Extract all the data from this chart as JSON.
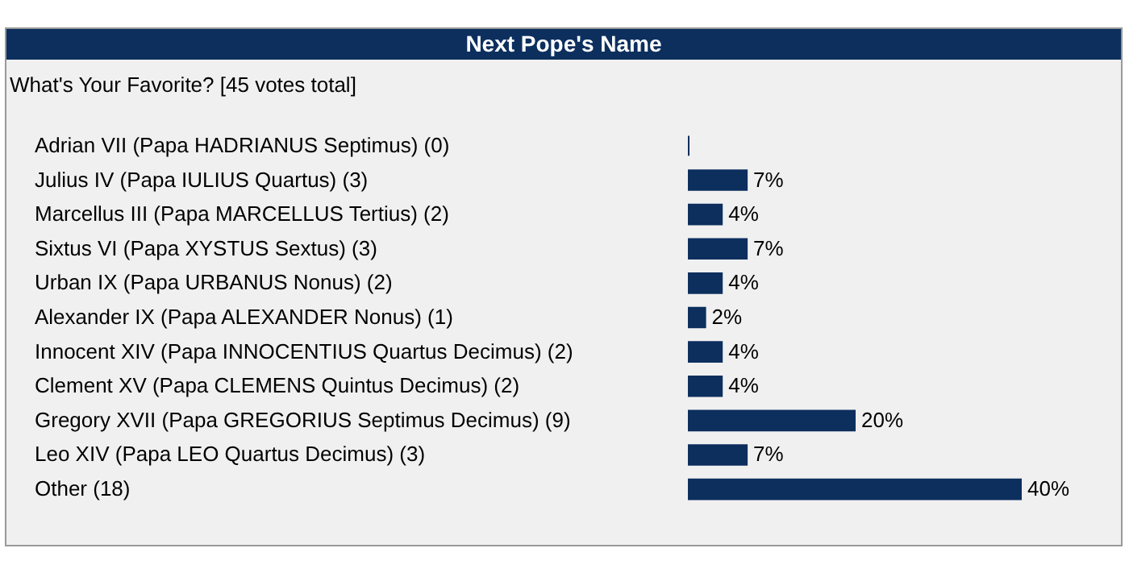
{
  "chart_data": {
    "type": "bar",
    "orientation": "horizontal",
    "title": "Next Pope's Name",
    "subtitle": "What's Your Favorite? [45 votes total]",
    "categories": [
      "Adrian VII (Papa HADRIANUS Septimus) (0)",
      "Julius IV (Papa IULIUS Quartus) (3)",
      "Marcellus III (Papa MARCELLUS Tertius) (2)",
      "Sixtus VI (Papa XYSTUS Sextus) (3)",
      "Urban IX (Papa URBANUS Nonus) (2)",
      "Alexander IX (Papa ALEXANDER Nonus) (1)",
      "Innocent XIV (Papa INNOCENTIUS Quartus Decimus) (2)",
      "Clement XV (Papa CLEMENS Quintus Decimus) (2)",
      "Gregory XVII (Papa GREGORIUS Septimus Decimus) (9)",
      "Leo XIV (Papa LEO Quartus Decimus) (3)",
      "Other (18)"
    ],
    "values": [
      0,
      7,
      4,
      7,
      4,
      2,
      4,
      4,
      20,
      7,
      40
    ],
    "value_labels": [
      null,
      "7%",
      "4%",
      "7%",
      "4%",
      "2%",
      "4%",
      "4%",
      "20%",
      "7%",
      "40%"
    ],
    "color": "#0c2f5e"
  }
}
